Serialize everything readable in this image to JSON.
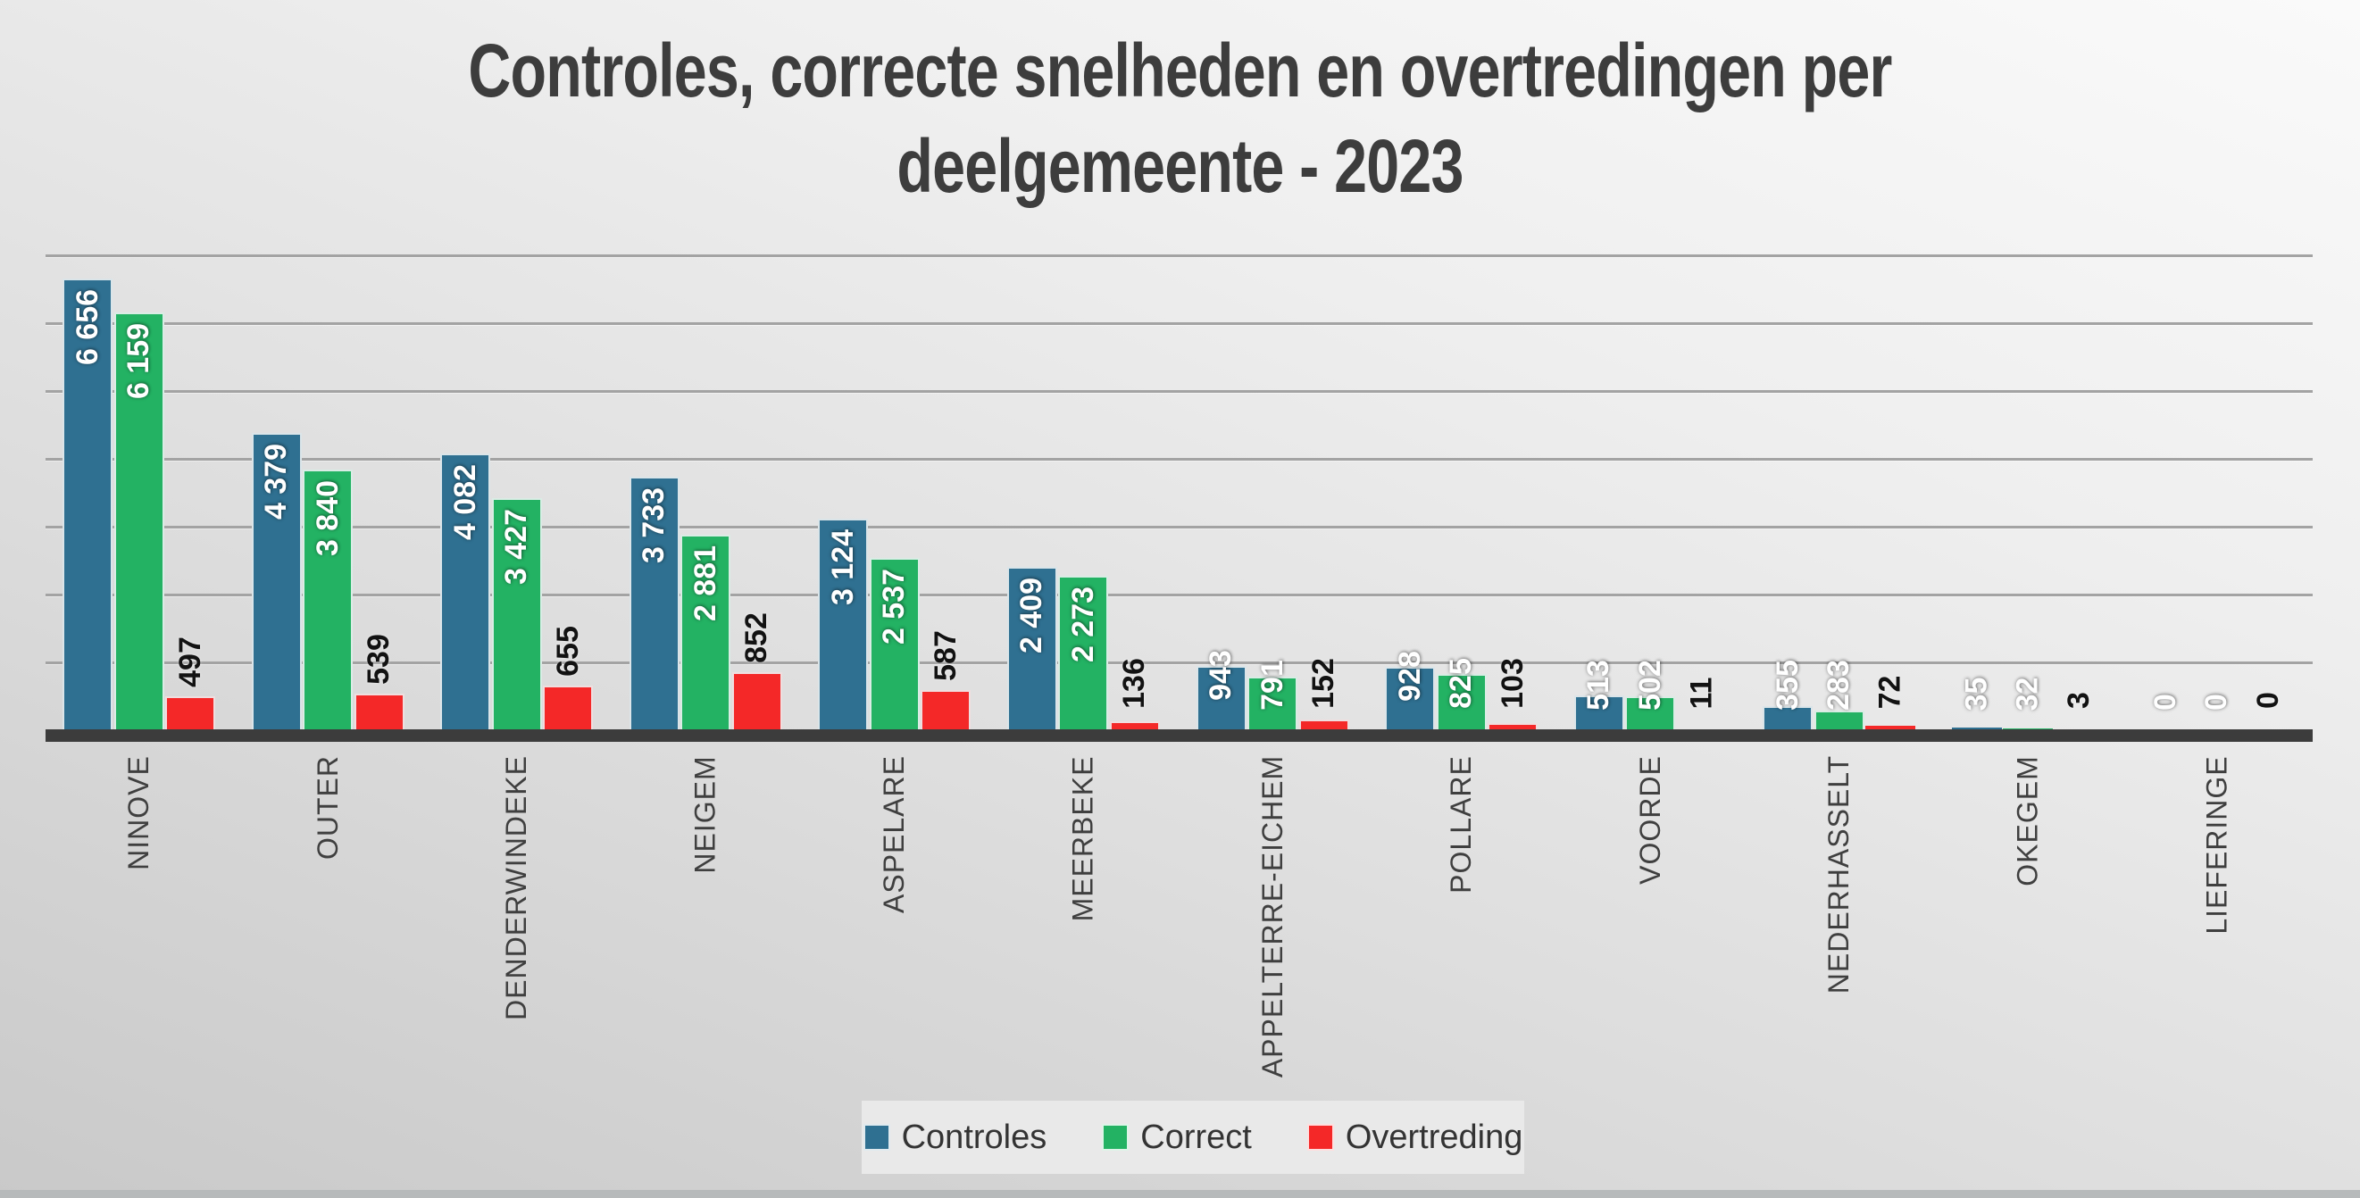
{
  "title": {
    "line1": "Controles, correcte snelheden en overtredingen per",
    "line2": "deelgemeente - 2023"
  },
  "colors": {
    "controles": "#2f7091",
    "correct": "#23b263",
    "overtreding": "#f42828",
    "gridline": "#a3a3a3",
    "axis_line": "#3c3c3c",
    "title_text": "#3d3d3d",
    "category_text": "#3f3f3f",
    "legend_bg": "#e9e9e9",
    "value_label_light": "#ffffff",
    "value_label_dark": "#121212"
  },
  "legend": {
    "items": [
      {
        "label": "Controles",
        "color": "#2f7091"
      },
      {
        "label": "Correct",
        "color": "#23b263"
      },
      {
        "label": "Overtreding",
        "color": "#f42828"
      }
    ],
    "position": "bottom"
  },
  "chart_data": {
    "type": "bar",
    "title": "Controles, correcte snelheden en overtredingen per deelgemeente - 2023",
    "categories": [
      "NINOVE",
      "OUTER",
      "DENDERWINDEKE",
      "NEIGEM",
      "ASPELARE",
      "MEERBEKE",
      "APPELTERRE-EICHEM",
      "POLLARE",
      "VOORDE",
      "NEDERHASSELT",
      "OKEGEM",
      "LIEFERINGE"
    ],
    "series": [
      {
        "name": "Controles",
        "color": "#2f7091",
        "label_style": "light",
        "values": [
          6656,
          4379,
          4082,
          3733,
          3124,
          2409,
          943,
          928,
          513,
          355,
          35,
          0
        ]
      },
      {
        "name": "Correct",
        "color": "#23b263",
        "label_style": "light",
        "values": [
          6159,
          3840,
          3427,
          2881,
          2537,
          2273,
          791,
          825,
          502,
          283,
          32,
          0
        ]
      },
      {
        "name": "Overtreding",
        "color": "#f42828",
        "label_style": "dark",
        "values": [
          497,
          539,
          655,
          852,
          587,
          136,
          152,
          103,
          11,
          72,
          3,
          0
        ]
      }
    ],
    "xlabel": "",
    "ylabel": "",
    "ylim": [
      0,
      7000
    ],
    "gridline_step": 1000,
    "grid": true,
    "y_axis_labels_visible": false,
    "data_labels": true,
    "data_label_rotation": "vertical",
    "category_label_rotation": "vertical",
    "number_format": "space-thousands",
    "legend_position": "bottom"
  }
}
